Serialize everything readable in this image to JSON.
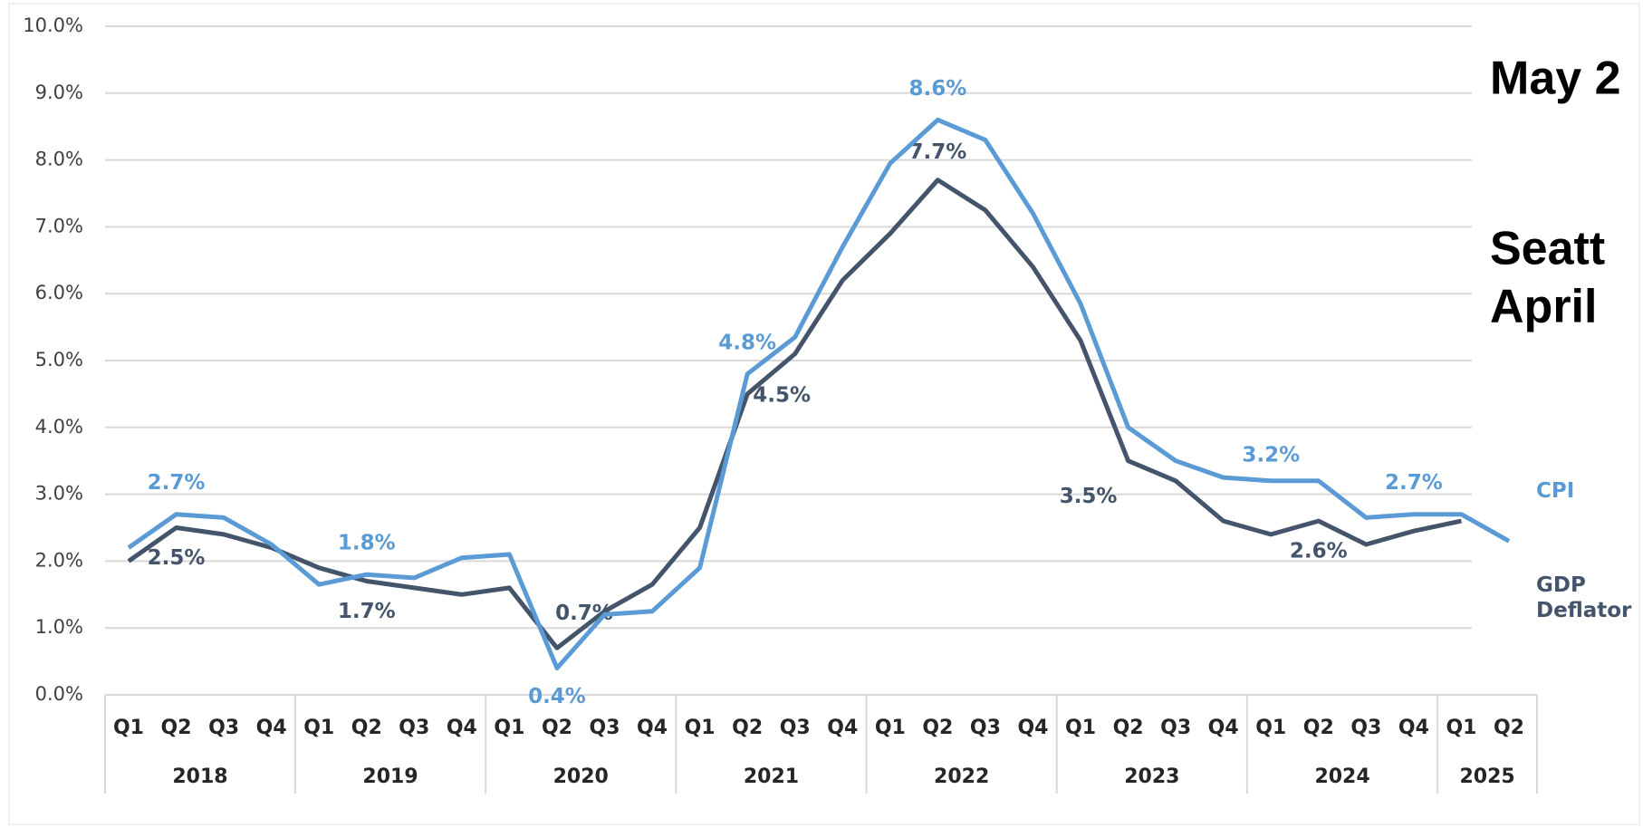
{
  "chart_data": {
    "type": "line",
    "groups": [
      {
        "name": "2018",
        "categories": [
          "Q1",
          "Q2",
          "Q3",
          "Q4"
        ]
      },
      {
        "name": "2019",
        "categories": [
          "Q1",
          "Q2",
          "Q3",
          "Q4"
        ]
      },
      {
        "name": "2020",
        "categories": [
          "Q1",
          "Q2",
          "Q3",
          "Q4"
        ]
      },
      {
        "name": "2021",
        "categories": [
          "Q1",
          "Q2",
          "Q3",
          "Q4"
        ]
      },
      {
        "name": "2022",
        "categories": [
          "Q1",
          "Q2",
          "Q3",
          "Q4"
        ]
      },
      {
        "name": "2023",
        "categories": [
          "Q1",
          "Q2",
          "Q3",
          "Q4"
        ]
      },
      {
        "name": "2024",
        "categories": [
          "Q1",
          "Q2",
          "Q3",
          "Q4"
        ]
      },
      {
        "name": "2025",
        "categories": [
          "Q1",
          "Q2"
        ]
      }
    ],
    "series": [
      {
        "name": "CPI",
        "color": "#5b9bd5",
        "values": [
          2.2,
          2.7,
          2.65,
          2.25,
          1.65,
          1.8,
          1.75,
          2.05,
          2.1,
          0.4,
          1.2,
          1.25,
          1.9,
          4.8,
          5.35,
          6.7,
          7.95,
          8.6,
          8.3,
          7.2,
          5.85,
          4.0,
          3.5,
          3.25,
          3.2,
          3.2,
          2.65,
          2.7,
          2.7,
          2.3
        ],
        "value_labels": [
          null,
          "2.7%",
          null,
          null,
          null,
          "1.8%",
          null,
          null,
          null,
          "0.4%",
          null,
          null,
          null,
          "4.8%",
          null,
          null,
          null,
          "8.6%",
          null,
          null,
          null,
          null,
          null,
          null,
          "3.2%",
          null,
          null,
          "2.7%",
          null,
          null
        ]
      },
      {
        "name": "GDP Deflator",
        "color": "#44546a",
        "values": [
          2.0,
          2.5,
          2.4,
          2.2,
          1.9,
          1.7,
          1.6,
          1.5,
          1.6,
          0.7,
          1.25,
          1.65,
          2.5,
          4.5,
          5.1,
          6.2,
          6.9,
          7.7,
          7.25,
          6.4,
          5.3,
          3.5,
          3.2,
          2.6,
          2.4,
          2.6,
          2.25,
          2.45,
          2.6,
          null
        ],
        "value_labels": [
          null,
          "2.5%",
          null,
          null,
          null,
          "1.7%",
          null,
          null,
          null,
          "0.7%",
          null,
          null,
          null,
          "4.5%",
          null,
          null,
          null,
          "7.7%",
          null,
          null,
          null,
          "3.5%",
          null,
          null,
          null,
          "2.6%",
          null,
          null,
          null,
          null
        ]
      }
    ],
    "ylim": [
      0,
      10
    ],
    "yticks": [
      {
        "value": 0,
        "label": "0.0%"
      },
      {
        "value": 1,
        "label": "1.0%"
      },
      {
        "value": 2,
        "label": "2.0%"
      },
      {
        "value": 3,
        "label": "3.0%"
      },
      {
        "value": 4,
        "label": "4.0%"
      },
      {
        "value": 5,
        "label": "5.0%"
      },
      {
        "value": 6,
        "label": "6.0%"
      },
      {
        "value": 7,
        "label": "7.0%"
      },
      {
        "value": 8,
        "label": "8.0%"
      },
      {
        "value": 9,
        "label": "9.0%"
      },
      {
        "value": 10,
        "label": "10.0%"
      }
    ],
    "grid": true,
    "side_texts": [
      "May 2",
      "Seatt",
      "April"
    ]
  }
}
